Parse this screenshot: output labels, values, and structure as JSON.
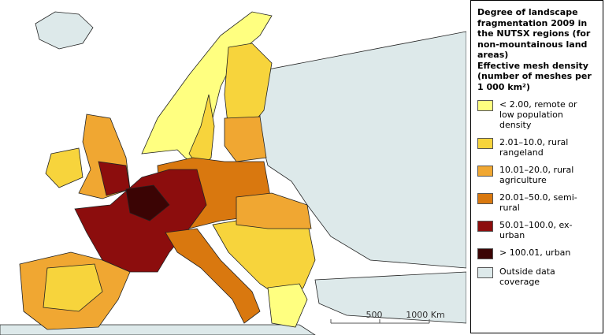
{
  "legend": {
    "title": "Degree of landscape fragmentation 2009 in the NUTSX regions (for non-mountainous land areas)",
    "subtitle": "Effective mesh density (number of meshes per 1 000 km²)",
    "items": [
      {
        "label": "< 2.00, remote or low population density",
        "color": "#ffff80"
      },
      {
        "label": "2.01–10.0, rural rangeland",
        "color": "#f7d43c"
      },
      {
        "label": "10.01–20.0, rural agriculture",
        "color": "#f0a732"
      },
      {
        "label": "20.01–50.0, semi-rural",
        "color": "#d9780f"
      },
      {
        "label": "50.01–100.0, ex-urban",
        "color": "#8c0d0d"
      },
      {
        "label": "> 100.01, urban",
        "color": "#3b0404"
      },
      {
        "label": "Outside data coverage",
        "color": "#dde9ea"
      }
    ]
  },
  "scale_bar": {
    "labels": [
      "500",
      "1000 Km"
    ]
  }
}
